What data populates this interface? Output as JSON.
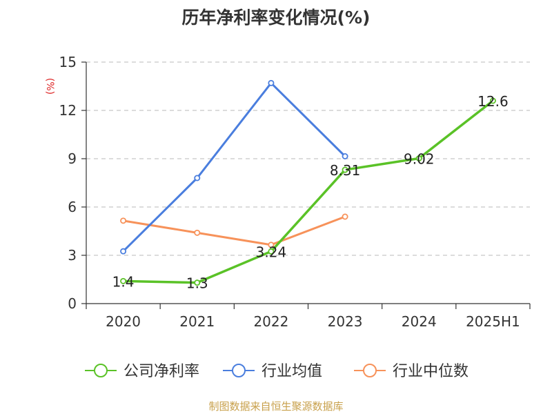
{
  "chart_data": {
    "type": "line",
    "title": "历年净利率变化情况(%)",
    "ylabel": "(%)",
    "categories": [
      "2020",
      "2021",
      "2022",
      "2023",
      "2024",
      "2025H1"
    ],
    "ylim": [
      0,
      15
    ],
    "yticks": [
      0,
      3,
      6,
      9,
      12,
      15
    ],
    "grid": true,
    "legend_position": "bottom",
    "series": [
      {
        "name": "公司净利率",
        "color": "#5ac227",
        "values": [
          1.4,
          1.3,
          3.24,
          8.31,
          9.02,
          12.6
        ],
        "labels": [
          "1.4",
          "1.3",
          "3.24",
          "8.31",
          "9.02",
          "12.6"
        ]
      },
      {
        "name": "行业均值",
        "color": "#4a7ede",
        "values": [
          3.25,
          7.8,
          13.7,
          9.15,
          null,
          null
        ]
      },
      {
        "name": "行业中位数",
        "color": "#f7925a",
        "values": [
          5.15,
          4.4,
          3.65,
          5.4,
          null,
          null
        ]
      }
    ]
  },
  "source": "制图数据来自恒生聚源数据库"
}
